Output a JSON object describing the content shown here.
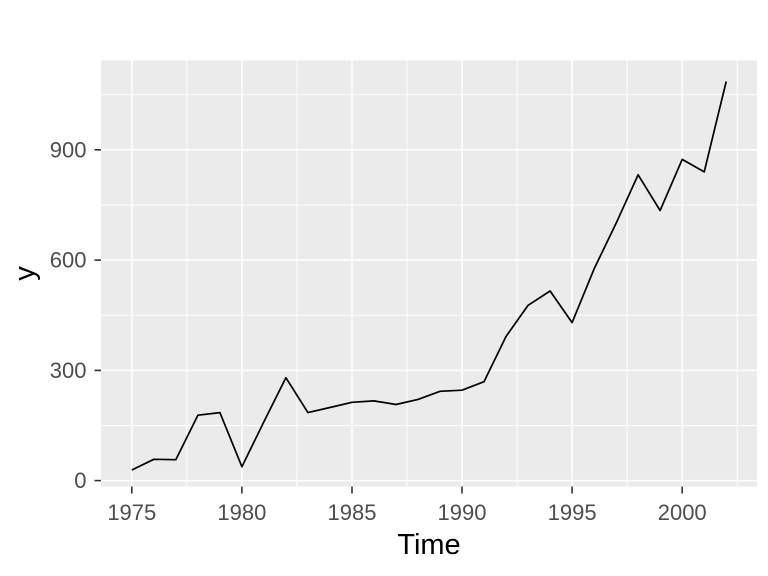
{
  "figure": {
    "background": "#FFFFFF"
  },
  "chart_data": {
    "type": "line",
    "title": "",
    "xlabel": "Time",
    "ylabel": "y",
    "x": [
      1975,
      1976,
      1977,
      1978,
      1979,
      1980,
      1981,
      1982,
      1983,
      1984,
      1985,
      1986,
      1987,
      1988,
      1989,
      1990,
      1991,
      1992,
      1993,
      1994,
      1995,
      1996,
      1997,
      1998,
      1999,
      2000,
      2001,
      2002
    ],
    "values": [
      29,
      58,
      57,
      178,
      185,
      38,
      160,
      280,
      185,
      199,
      213,
      217,
      207,
      221,
      243,
      246,
      269,
      392,
      477,
      516,
      430,
      576,
      700,
      832,
      735,
      874,
      840,
      1086
    ],
    "x_ticks": [
      1975,
      1980,
      1985,
      1990,
      1995,
      2000
    ],
    "x_tick_labels": [
      "1975",
      "1980",
      "1985",
      "1990",
      "1995",
      "2000"
    ],
    "x_minor": [
      1977.5,
      1982.5,
      1987.5,
      1992.5,
      1997.5,
      2002.5
    ],
    "y_ticks": [
      0,
      300,
      600,
      900
    ],
    "y_tick_labels": [
      "0",
      "300",
      "600",
      "900"
    ],
    "y_minor": [
      150,
      450,
      750,
      1050
    ],
    "xlim": [
      1973.6,
      2003.4
    ],
    "ylim": [
      -16,
      1143
    ],
    "grid": "on",
    "legend": "none",
    "colors": {
      "line": "#000000",
      "panel_bg": "#EBEBEB",
      "grid_major": "#FFFFFF",
      "grid_minor": "#FFFFFF",
      "tick_mark": "#333333",
      "tick_label": "#4D4D4D",
      "axis_title": "#000000"
    }
  }
}
